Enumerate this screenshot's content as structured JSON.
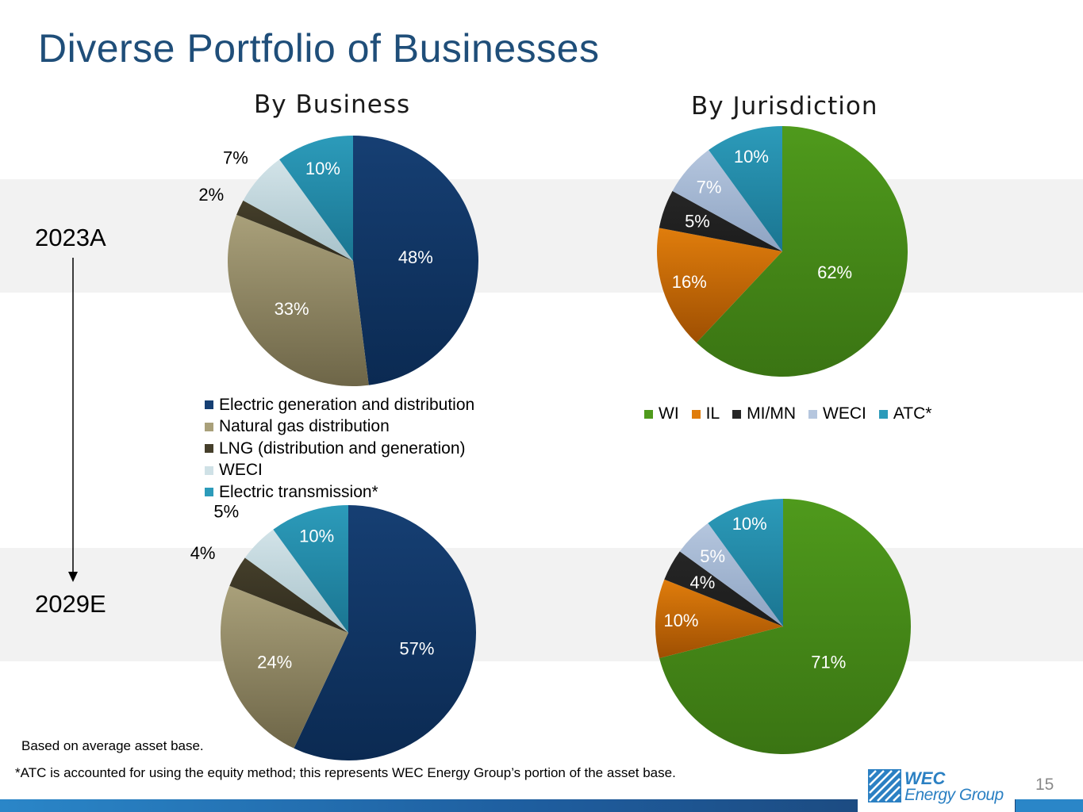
{
  "slide": {
    "title": "Diverse Portfolio of Businesses",
    "page_number": "15",
    "period_start": "2023A",
    "period_end": "2029E",
    "notes": {
      "basis": "Based on average asset base.",
      "atc": "*ATC is accounted for using the equity method; this represents WEC Energy Group’s portion of the asset base."
    },
    "logo": {
      "line1": "WEC",
      "line2": "Energy Group"
    },
    "colors": {
      "title": "#1f4e79",
      "band": "#f2f2f2",
      "footer_dark": "#1b3f6e",
      "footer_light": "#2a86c8"
    }
  },
  "chart_data": [
    {
      "type": "pie",
      "title": "By Business",
      "period": "2023A",
      "categories": [
        "Electric generation and distribution",
        "Natural gas distribution",
        "LNG (distribution and generation)",
        "WECI",
        "Electric transmission*"
      ],
      "values": [
        48,
        33,
        2,
        7,
        10
      ],
      "labels": [
        "48%",
        "33%",
        "2%",
        "7%",
        "10%"
      ],
      "colors": [
        "#163f73",
        "#a9a07a",
        "#453f2b",
        "#d2e3e8",
        "#2c9bba"
      ],
      "legend": "bottom"
    },
    {
      "type": "pie",
      "title": "",
      "period": "2029E",
      "categories": [
        "Electric generation and distribution",
        "Natural gas distribution",
        "LNG (distribution and generation)",
        "WECI",
        "Electric transmission*"
      ],
      "values": [
        57,
        24,
        4,
        5,
        10
      ],
      "labels": [
        "57%",
        "24%",
        "4%",
        "5%",
        "10%"
      ],
      "colors": [
        "#163f73",
        "#a9a07a",
        "#453f2b",
        "#d2e3e8",
        "#2c9bba"
      ]
    },
    {
      "type": "pie",
      "title": "By Jurisdiction",
      "period": "2023A",
      "categories": [
        "WI",
        "IL",
        "MI/MN",
        "WECI",
        "ATC*"
      ],
      "values": [
        62,
        16,
        5,
        7,
        10
      ],
      "labels": [
        "62%",
        "16%",
        "5%",
        "7%",
        "10%"
      ],
      "colors": [
        "#4f9a1c",
        "#e07d0c",
        "#262626",
        "#b5c6de",
        "#2c9bba"
      ],
      "legend": "bottom"
    },
    {
      "type": "pie",
      "title": "",
      "period": "2029E",
      "categories": [
        "WI",
        "IL",
        "MI/MN",
        "WECI",
        "ATC*"
      ],
      "values": [
        71,
        10,
        4,
        5,
        10
      ],
      "labels": [
        "71%",
        "10%",
        "4%",
        "5%",
        "10%"
      ],
      "colors": [
        "#4f9a1c",
        "#e07d0c",
        "#262626",
        "#b5c6de",
        "#2c9bba"
      ]
    }
  ]
}
